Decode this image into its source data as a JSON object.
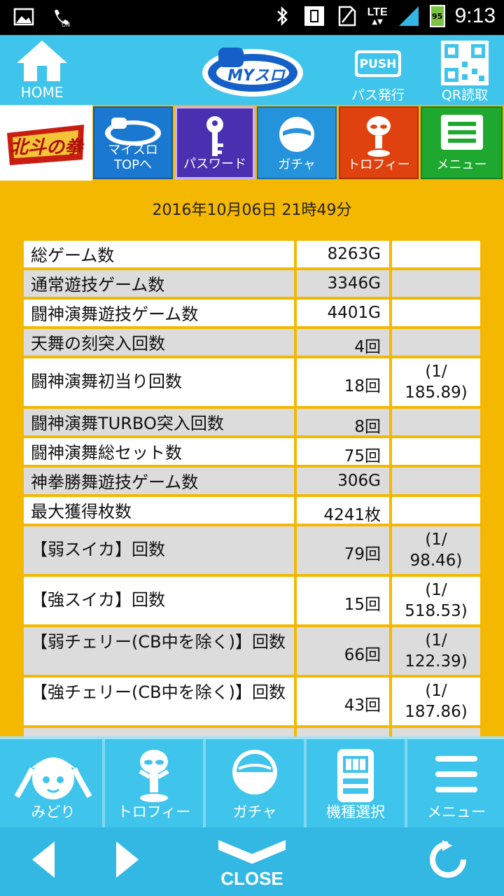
{
  "status_bar": {
    "network": "LTE",
    "battery": "95",
    "time": "9:13",
    "icons": [
      "gallery-icon",
      "call-on-icon",
      "bluetooth-icon",
      "vibrate-icon",
      "signal-icon",
      "battery-icon"
    ]
  },
  "header": {
    "home_label": "HOME",
    "logo_text": "MYスロ",
    "pass_badge": "PUSH",
    "pass_label": "パス発行",
    "qr_label": "QR読取"
  },
  "nav_tiles": [
    {
      "label_line1": "マイスロ",
      "label_line2": "TOPへ"
    },
    {
      "label_line1": "パスワード"
    },
    {
      "label_line1": "ガチャ"
    },
    {
      "label_line1": "トロフィー"
    },
    {
      "label_line1": "メニュー"
    }
  ],
  "game_logo_text": "北斗の拳",
  "timestamp": "2016年10月06日 21時49分",
  "rows": [
    {
      "label": "総ゲーム数",
      "value": "8263G",
      "ratio": ""
    },
    {
      "label": "通常遊技ゲーム数",
      "value": "3346G",
      "ratio": ""
    },
    {
      "label": "闘神演舞遊技ゲーム数",
      "value": "4401G",
      "ratio": ""
    },
    {
      "label": "天舞の刻突入回数",
      "value": "4回",
      "ratio": ""
    },
    {
      "label": "闘神演舞初当り回数",
      "value": "18回",
      "ratio": "(1/\n185.89)"
    },
    {
      "label": "闘神演舞TURBO突入回数",
      "value": "8回",
      "ratio": ""
    },
    {
      "label": "闘神演舞総セット数",
      "value": "75回",
      "ratio": ""
    },
    {
      "label": "神拳勝舞遊技ゲーム数",
      "value": "306G",
      "ratio": ""
    },
    {
      "label": "最大獲得枚数",
      "value": "4241枚",
      "ratio": ""
    },
    {
      "label": "【弱スイカ】回数",
      "value": "79回",
      "ratio": "(1/\n98.46)"
    },
    {
      "label": "【強スイカ】回数",
      "value": "15回",
      "ratio": "(1/\n518.53)"
    },
    {
      "label": "【弱チェリー(CB中を除く)】回数",
      "value": "66回",
      "ratio": "(1/\n122.39)"
    },
    {
      "label": "【強チェリー(CB中を除く)】回数",
      "value": "43回",
      "ratio": "(1/\n187.86)"
    }
  ],
  "bottom_nav": [
    {
      "label": "みどり"
    },
    {
      "label": "トロフィー"
    },
    {
      "label": "ガチャ"
    },
    {
      "label": "機種選択"
    },
    {
      "label": "メニュー"
    }
  ],
  "footer": {
    "close_label": "CLOSE"
  }
}
